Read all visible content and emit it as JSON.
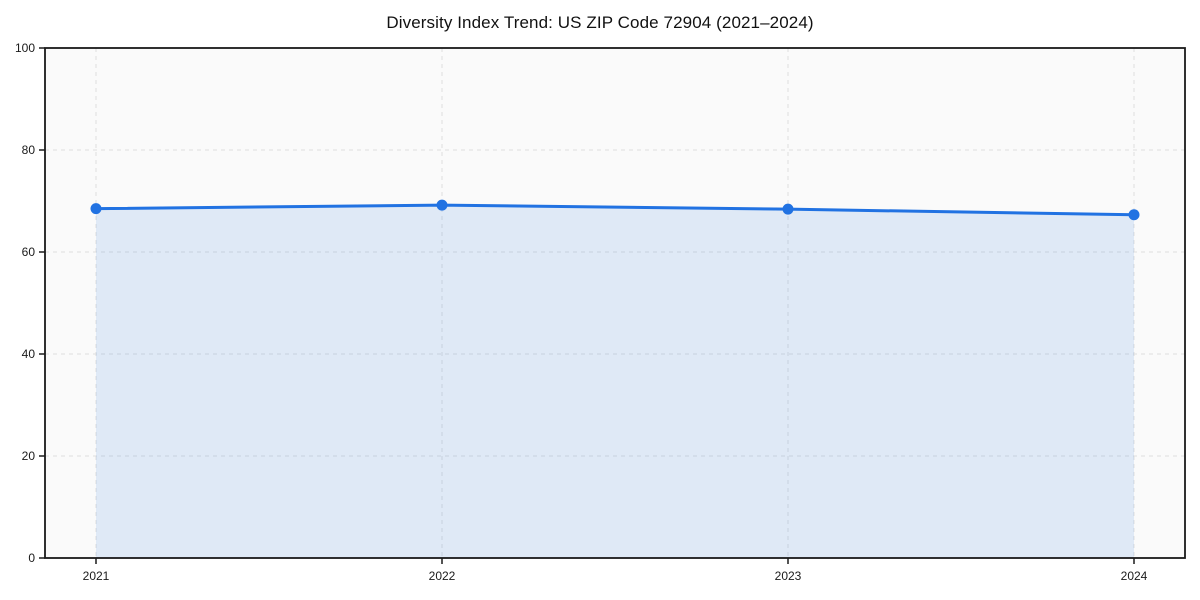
{
  "page": {
    "background": "#ffffff"
  },
  "chart_data": {
    "type": "line",
    "title": "Diversity Index Trend: US ZIP Code 72904 (2021–2024)",
    "x": [
      "2021",
      "2022",
      "2023",
      "2024"
    ],
    "series": [
      {
        "name": "Diversity Index",
        "values": [
          68.5,
          69.2,
          68.4,
          67.3
        ]
      }
    ],
    "xlabel": "",
    "ylabel": "",
    "ylim": [
      0,
      100
    ],
    "yticks": [
      0,
      20,
      40,
      60,
      80,
      100
    ],
    "grid": "dashed",
    "legend_position": "none",
    "area_fill": true,
    "marker": "circle",
    "colors": {
      "line": "#2172e2",
      "marker": "#2172e2",
      "fill": "rgba(33,114,226,0.12)",
      "grid": "#dedede",
      "plot_bg": "#fafafa",
      "axis": "#1a1a1a",
      "tick_label": "#1a1a1a",
      "title": "#111111"
    }
  }
}
